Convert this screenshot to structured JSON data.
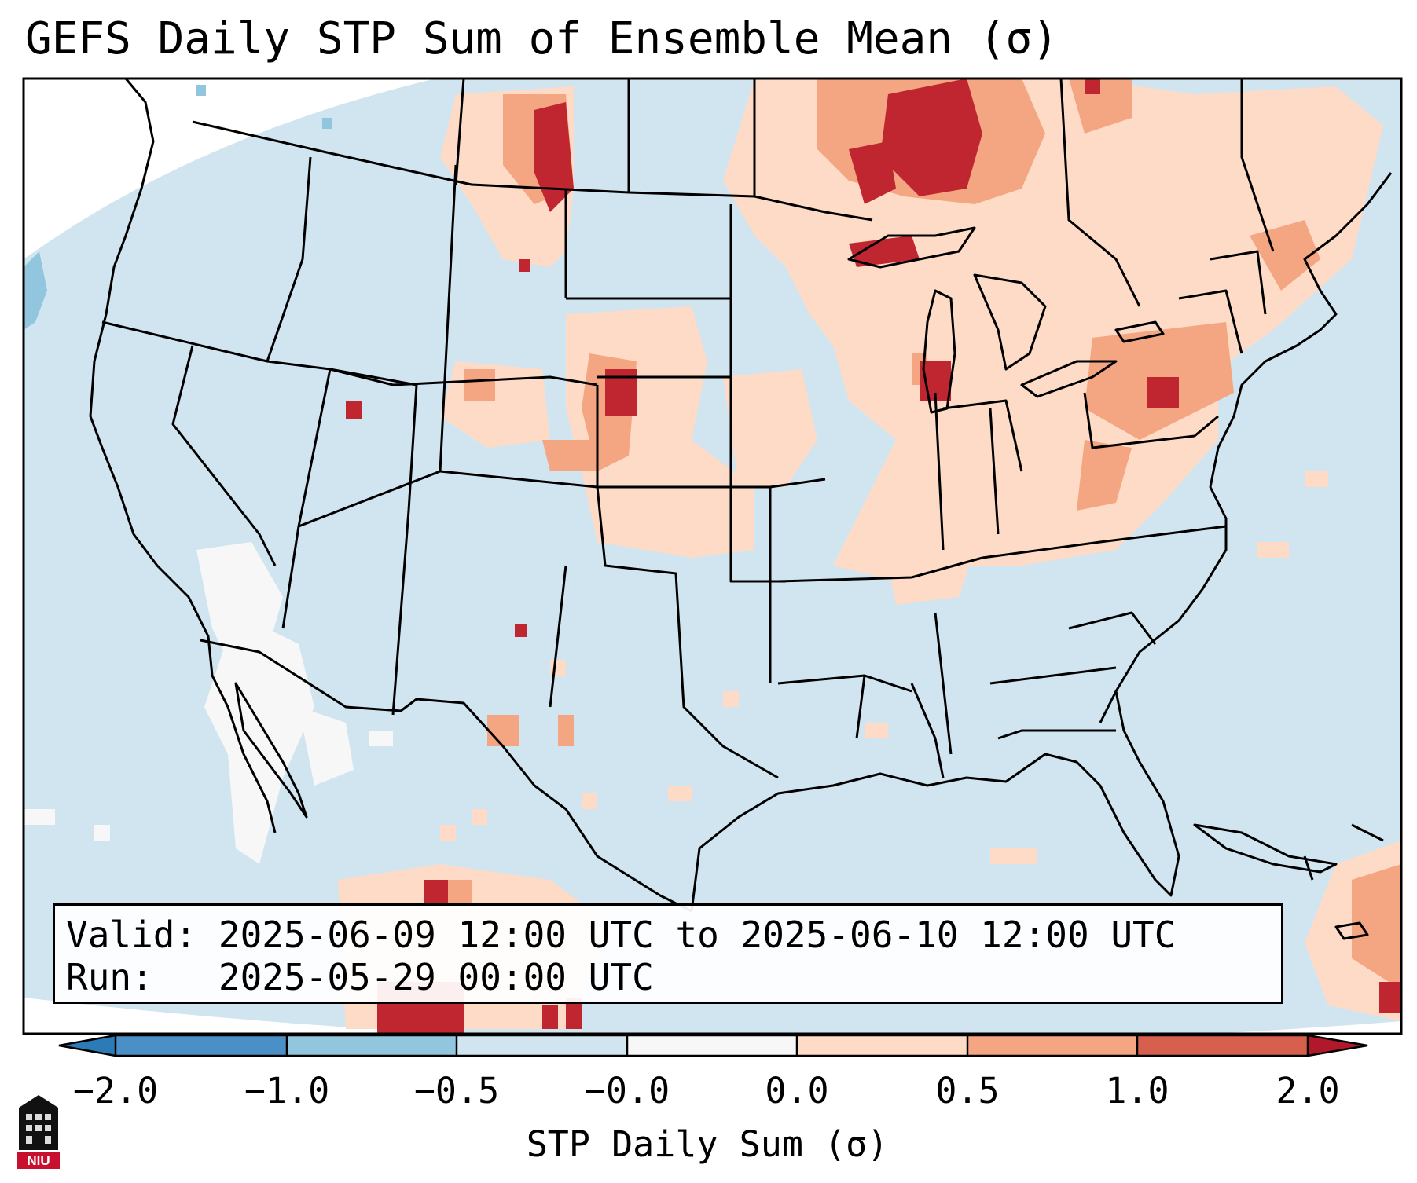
{
  "title": "GEFS Daily STP Sum of Ensemble Mean (σ)",
  "valid_box": {
    "valid_label": "Valid:",
    "valid_value": "2025-06-09 12:00 UTC to 2025-06-10 12:00 UTC",
    "run_label": "Run:",
    "run_value": "2025-05-29 00:00 UTC"
  },
  "colorbar": {
    "label": "STP Daily Sum (σ)",
    "ticks": [
      "−2.0",
      "−1.0",
      "−0.5",
      "−0.0",
      "0.0",
      "0.5",
      "1.0",
      "2.0"
    ],
    "colors": [
      "#2c7bb6",
      "#4a90c6",
      "#92c5de",
      "#d1e5f0",
      "#f7f7f7",
      "#fddbc7",
      "#f4a582",
      "#d6604d",
      "#b2182b"
    ],
    "extend": "both"
  },
  "map": {
    "region": "Continental United States",
    "background_color": "#d1e5f0",
    "hotspots": [
      "Montana / Saskatchewan border",
      "Ontario north of Lake Superior",
      "Upper Michigan",
      "Lake Michigan (Chicago)",
      "Nebraska / Colorado",
      "Pennsylvania",
      "Southern Mexico",
      "Caribbean near Puerto Rico"
    ]
  },
  "logo": {
    "text": "NIU",
    "accent": "#c8102e"
  }
}
